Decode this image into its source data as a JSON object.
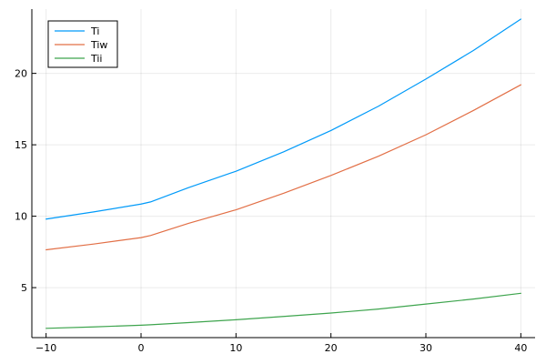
{
  "chart_data": {
    "type": "line",
    "title": "",
    "xlabel": "",
    "ylabel": "",
    "xlim": [
      -11.5,
      41.5
    ],
    "ylim": [
      1.5,
      24.5
    ],
    "x_ticks": [
      -10,
      0,
      10,
      20,
      30,
      40
    ],
    "y_ticks": [
      5,
      10,
      15,
      20
    ],
    "grid": true,
    "legend_position": "top-left",
    "x": [
      -10,
      -5,
      0,
      1,
      5,
      10,
      15,
      20,
      25,
      30,
      35,
      40
    ],
    "series": [
      {
        "name": "Ti",
        "color": "#009af9",
        "values": [
          9.8,
          10.3,
          10.85,
          11.0,
          12.0,
          13.15,
          14.5,
          16.0,
          17.7,
          19.6,
          21.6,
          23.8
        ]
      },
      {
        "name": "Tiw",
        "color": "#e26f46",
        "values": [
          7.65,
          8.05,
          8.5,
          8.65,
          9.5,
          10.45,
          11.6,
          12.85,
          14.2,
          15.7,
          17.4,
          19.2
        ]
      },
      {
        "name": "Tii",
        "color": "#3da44d",
        "values": [
          2.15,
          2.25,
          2.37,
          2.4,
          2.55,
          2.75,
          2.98,
          3.22,
          3.5,
          3.85,
          4.2,
          4.6
        ]
      }
    ]
  }
}
